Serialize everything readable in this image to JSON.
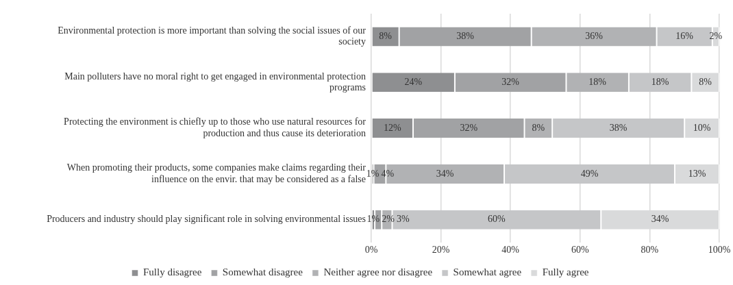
{
  "chart_data": {
    "type": "bar",
    "orientation": "horizontal",
    "stacked": true,
    "categories": [
      "Environmental protection is more important than solving the social issues of our society",
      "Main polluters have no moral right to get engaged in environmental protection programs",
      "Protecting the environment is chiefly up to those who use natural resources for production and thus cause its deterioration",
      "When promoting their products, some companies make claims regarding their influence on the envir. that may be considered as a false",
      "Producers and industry should play significant role in solving environmental issues"
    ],
    "series": [
      {
        "name": "Fully disagree",
        "color": "#8e8f91",
        "values": [
          8,
          24,
          12,
          0.7,
          1
        ],
        "value_labels": [
          "8%",
          "24%",
          "12%",
          "1%",
          "1%"
        ]
      },
      {
        "name": "Somewhat disagree",
        "color": "#a1a2a4",
        "values": [
          38,
          32,
          32,
          3.5,
          2
        ],
        "value_labels": [
          "38%",
          "32%",
          "32%",
          "4%",
          "2%"
        ]
      },
      {
        "name": "Neither agree nor disagree",
        "color": "#b1b2b4",
        "values": [
          36,
          18,
          8,
          34,
          3
        ],
        "value_labels": [
          "36%",
          "18%",
          "8%",
          "34%",
          "3%"
        ]
      },
      {
        "name": "Somewhat agree",
        "color": "#c5c6c8",
        "values": [
          16,
          18,
          38,
          49,
          60
        ],
        "value_labels": [
          "16%",
          "18%",
          "38%",
          "49%",
          "60%"
        ]
      },
      {
        "name": "Fully agree",
        "color": "#d9dadb",
        "values": [
          2,
          8,
          10,
          12.8,
          34
        ],
        "value_labels": [
          "2%",
          "8%",
          "10%",
          "13%",
          "34%"
        ]
      }
    ],
    "xlim": [
      0,
      100
    ],
    "xticks": [
      {
        "value": 0,
        "label": "0%"
      },
      {
        "value": 20,
        "label": "20%"
      },
      {
        "value": 40,
        "label": "40%"
      },
      {
        "value": 60,
        "label": "60%"
      },
      {
        "value": 80,
        "label": "80%"
      },
      {
        "value": 100,
        "label": "100%"
      }
    ],
    "grid": "x",
    "legend": "bottom"
  }
}
